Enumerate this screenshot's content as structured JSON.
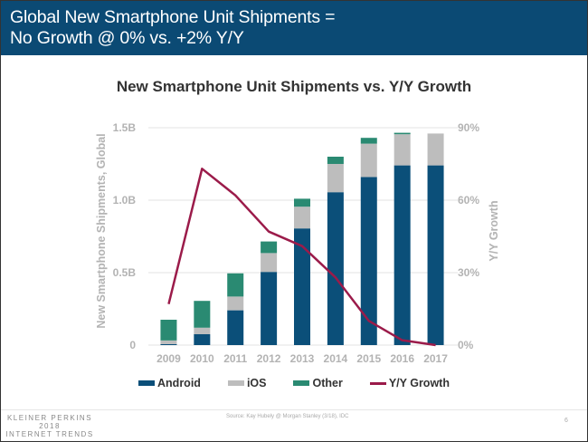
{
  "header": {
    "title_line1": "Global New Smartphone Unit Shipments =",
    "title_line2": "No Growth @ 0% vs. +2% Y/Y"
  },
  "footer": {
    "brand_line1": "KLEINER PERKINS",
    "brand_line2": "2018",
    "brand_line3": "INTERNET TRENDS",
    "source": "Source: Kay Hubely @ Morgan Stanley (3/18), IDC",
    "page_number": "6"
  },
  "colors": {
    "header_bg": "#0b4a74",
    "android": "#0b4f79",
    "ios": "#bdbdbd",
    "other": "#2a8a72",
    "growth": "#9b1b4a",
    "axis_text": "#b3b3b3",
    "grid": "#e3e3e3"
  },
  "chart_data": {
    "type": "bar",
    "stacked": true,
    "title": "New Smartphone Unit Shipments vs. Y/Y Growth",
    "xlabel": "",
    "ylabel": "New Smartphone Shipments, Global",
    "y2label": "Y/Y Growth",
    "categories": [
      "2009",
      "2010",
      "2011",
      "2012",
      "2013",
      "2014",
      "2015",
      "2016",
      "2017"
    ],
    "ylim": [
      0,
      1500
    ],
    "y_unit": "M",
    "y_ticks": [
      0,
      500,
      1000,
      1500
    ],
    "y_tick_labels": [
      "0",
      "0.5B",
      "1.0B",
      "1.5B"
    ],
    "y2lim": [
      0,
      90
    ],
    "y2_ticks": [
      0,
      30,
      60,
      90
    ],
    "y2_tick_labels": [
      "0%",
      "30%",
      "60%",
      "90%"
    ],
    "grid": true,
    "legend_position": "bottom",
    "series": [
      {
        "name": "Android",
        "type": "bar",
        "axis": "left",
        "values": [
          7,
          75,
          240,
          505,
          805,
          1055,
          1160,
          1240,
          1240
        ]
      },
      {
        "name": "iOS",
        "type": "bar",
        "axis": "left",
        "values": [
          25,
          45,
          95,
          130,
          150,
          195,
          230,
          215,
          220
        ]
      },
      {
        "name": "Other",
        "type": "bar",
        "axis": "left",
        "values": [
          143,
          185,
          160,
          80,
          55,
          50,
          40,
          10,
          0
        ]
      },
      {
        "name": "Y/Y Growth",
        "type": "line",
        "axis": "right",
        "values": [
          17,
          73,
          62,
          47,
          41,
          28,
          10,
          2,
          0
        ]
      }
    ]
  }
}
